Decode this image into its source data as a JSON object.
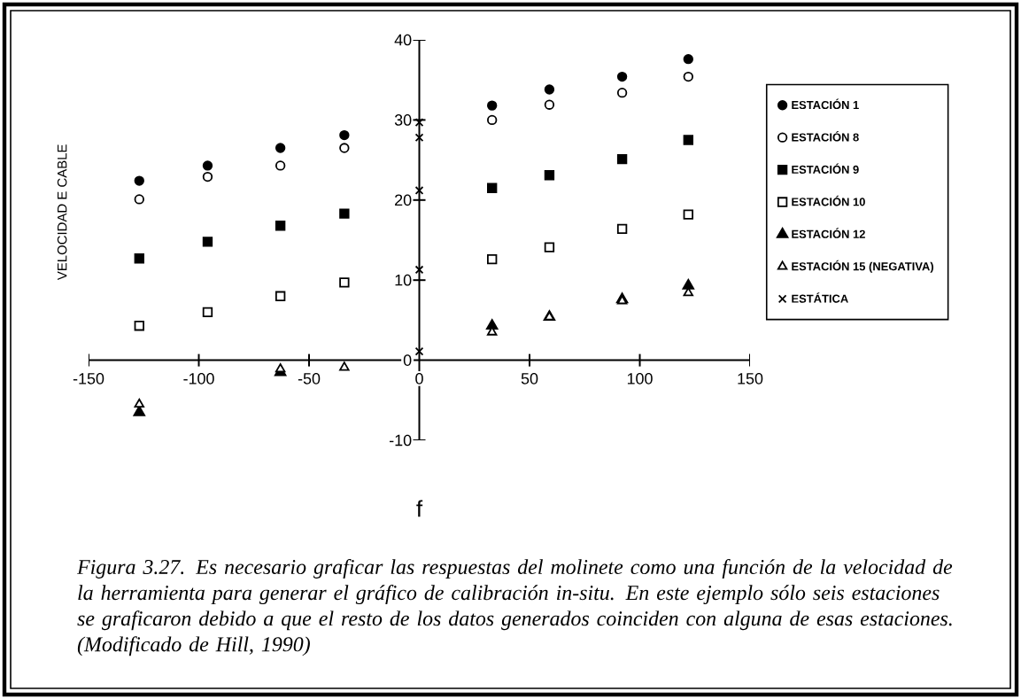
{
  "chart_data": {
    "type": "scatter",
    "xlabel": "f",
    "ylabel": "VELOCIDAD E CABLE",
    "x": [
      -127,
      -96,
      -63,
      -34,
      33,
      59,
      92,
      122
    ],
    "series": [
      {
        "name": "ESTACIÓN 1",
        "color": "#000000",
        "marker": "circle",
        "values": [
          22.4,
          24.3,
          26.5,
          28.1,
          31.8,
          33.8,
          35.4,
          37.6
        ]
      },
      {
        "name": "ESTACIÓN 8",
        "color": "#000000",
        "marker": "circle-open",
        "values": [
          20.1,
          22.9,
          24.3,
          26.5,
          30.0,
          31.9,
          33.4,
          35.4
        ]
      },
      {
        "name": "ESTACIÓN 9",
        "color": "#000000",
        "marker": "square",
        "values": [
          12.7,
          14.8,
          16.8,
          18.3,
          21.5,
          23.1,
          25.1,
          27.5
        ]
      },
      {
        "name": "ESTACIÓN 10",
        "color": "#000000",
        "marker": "square-open",
        "values": [
          4.3,
          6.0,
          8.0,
          9.7,
          12.6,
          14.1,
          16.4,
          18.2
        ]
      },
      {
        "name": "ESTACIÓN 12",
        "color": "#000000",
        "marker": "triangle",
        "x": [
          -127,
          -63,
          33,
          59,
          92,
          122
        ],
        "values": [
          -6.5,
          -1.5,
          4.3,
          5.4,
          7.6,
          9.3
        ]
      },
      {
        "name": "ESTACIÓN 15 (NEGATIVA)",
        "color": "#000000",
        "marker": "triangle-open",
        "x": [
          -127,
          -63,
          -34,
          33,
          59,
          92,
          122
        ],
        "values": [
          -5.5,
          -1.1,
          -0.9,
          3.5,
          5.4,
          7.4,
          8.4
        ]
      },
      {
        "name": "ESTÁTICA",
        "color": "#000000",
        "marker": "cross",
        "x": [
          0,
          0,
          0,
          0,
          0
        ],
        "values": [
          1.1,
          11.3,
          21.2,
          27.8,
          29.7
        ]
      }
    ],
    "xlim": [
      -150,
      150
    ],
    "xticks": [
      -150,
      -100,
      -50,
      0,
      50,
      100,
      150
    ],
    "ylim": [
      -10,
      40
    ],
    "yticks": [
      -10,
      0,
      10,
      20,
      30,
      40
    ],
    "legend": "right",
    "annotations": [
      "Figura 3.27. Es necesario graficar las respuestas del molinete como una función de la velocidad de la herramienta para generar el gráfico de calibración in-situ. En este ejemplo sólo seis estaciones se graficaron debido a que el resto de los datos generados coinciden con alguna de esas estaciones. (Modificado de Hill, 1990)"
    ]
  }
}
